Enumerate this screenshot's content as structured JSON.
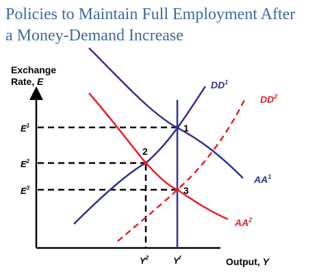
{
  "title_line1": "Policies to Maintain Full Employment After",
  "title_line2": "a Money-Demand Increase",
  "y_axis_line1": "Exchange",
  "y_axis_line2_text": "Rate, ",
  "y_axis_line2_var": "E",
  "x_axis_text": "Output, ",
  "x_axis_var": "Y",
  "levels": {
    "E1": {
      "base": "E",
      "sup": "1"
    },
    "E2": {
      "base": "E",
      "sup": "2"
    },
    "E3": {
      "base": "E",
      "sup": "3"
    },
    "Y2": {
      "base": "Y",
      "sup": "2"
    },
    "Yf": {
      "base": "Y",
      "sup": "f"
    }
  },
  "curves": {
    "DD1": {
      "base": "DD",
      "sup": "1",
      "color": "#2e3192"
    },
    "DD2": {
      "base": "DD",
      "sup": "2",
      "color": "#ed1c24"
    },
    "AA1": {
      "base": "AA",
      "sup": "1",
      "color": "#2e3192"
    },
    "AA2": {
      "base": "AA",
      "sup": "2",
      "color": "#ed1c24"
    },
    "Yf_line": {
      "color": "#2e3192"
    }
  },
  "points": {
    "p1": "1",
    "p2": "2",
    "p3": "3"
  }
}
